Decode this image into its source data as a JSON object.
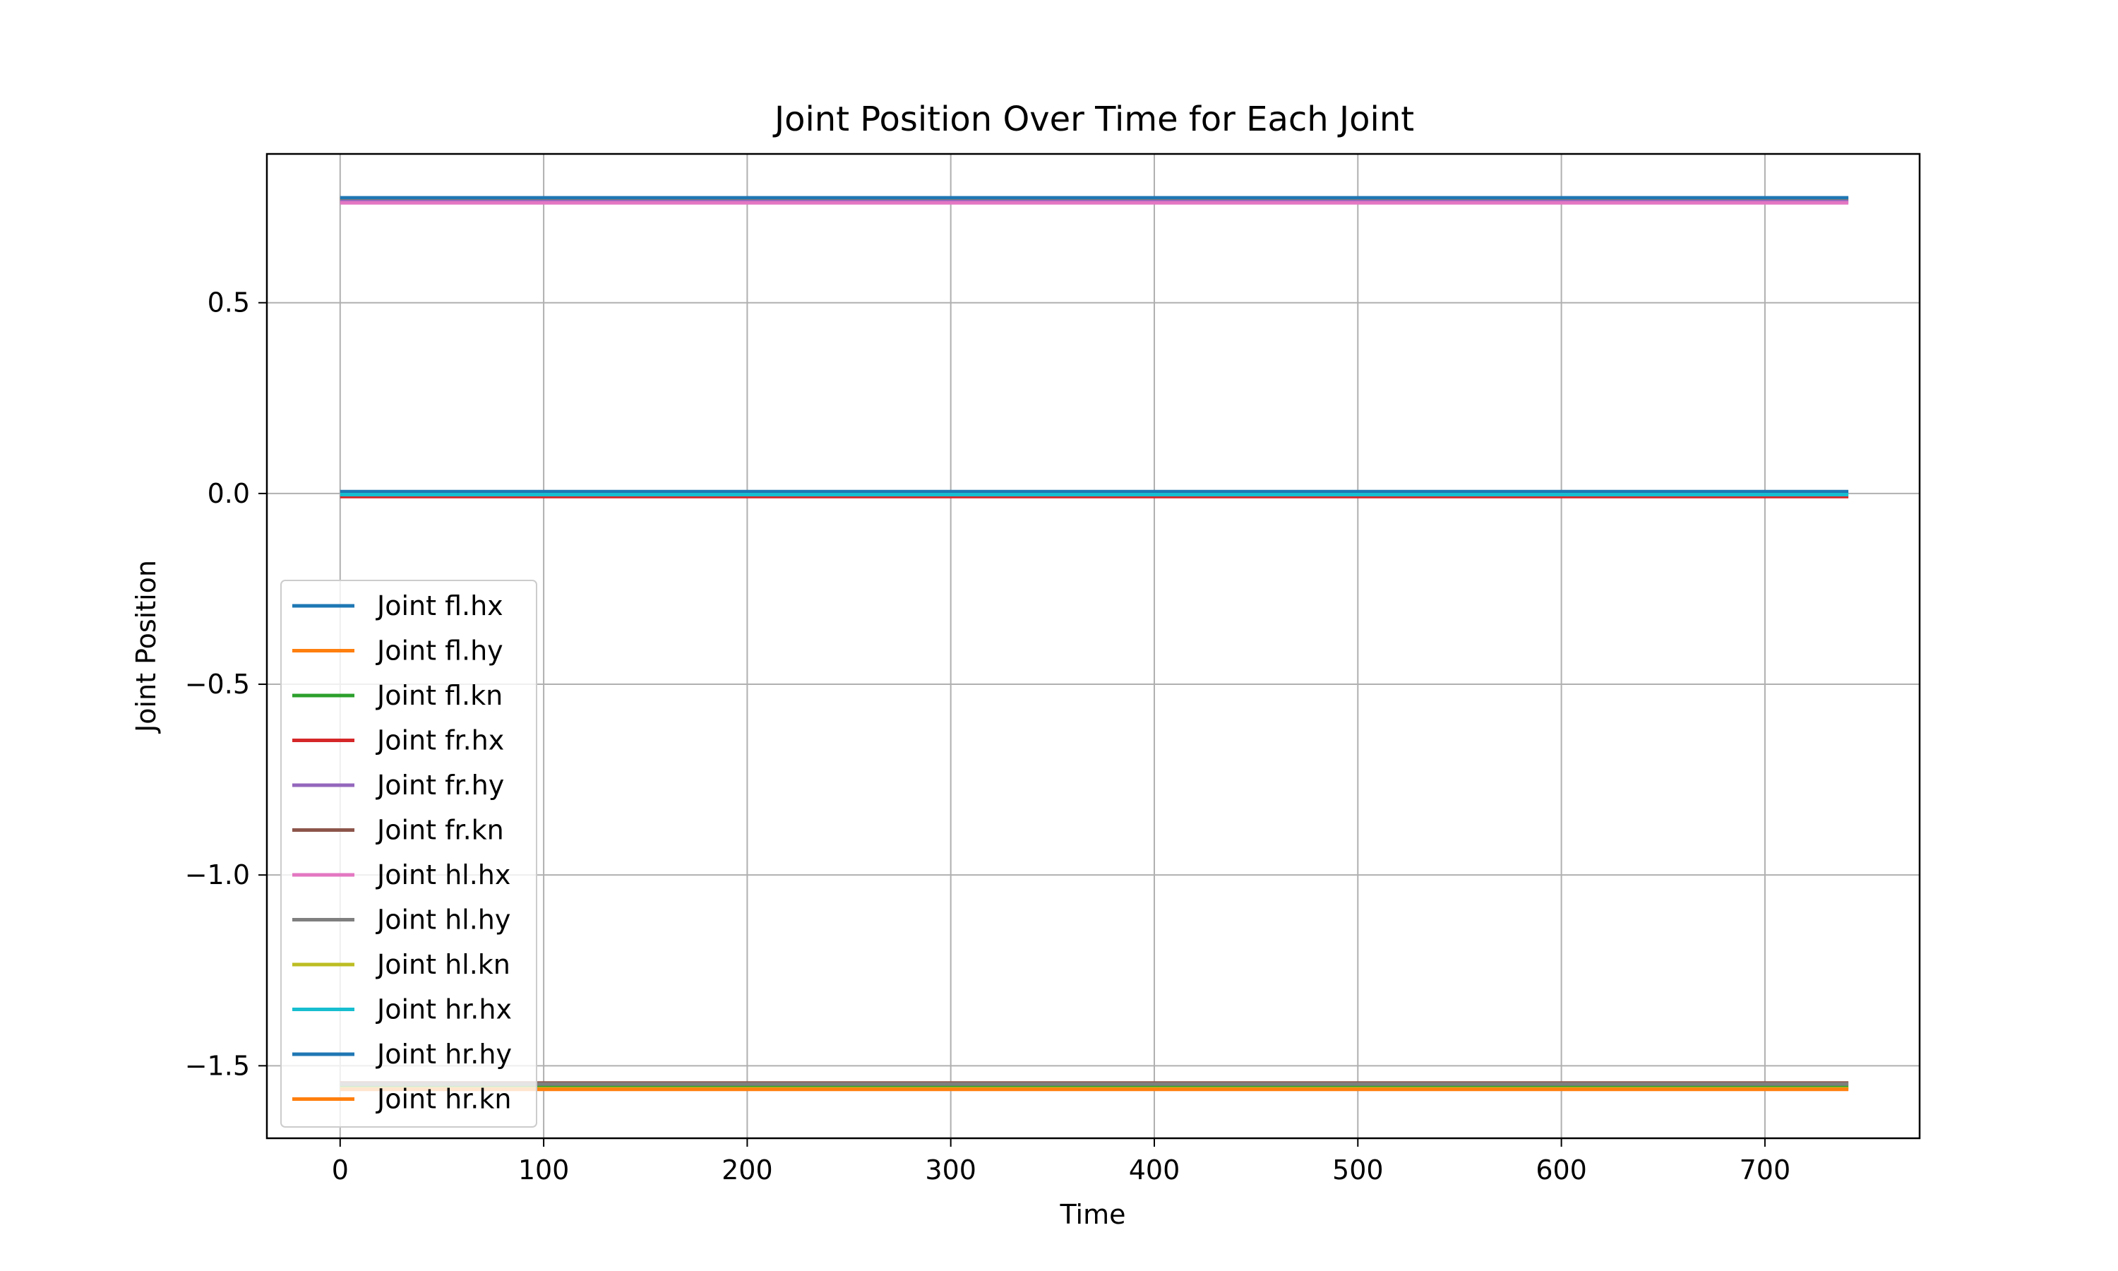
{
  "chart_data": {
    "type": "line",
    "title": "Joint Position Over Time for Each Joint",
    "xlabel": "Time",
    "ylabel": "Joint Position",
    "xlim": [
      -36,
      776
    ],
    "ylim": [
      -1.69,
      0.89
    ],
    "xticks": [
      0,
      100,
      200,
      300,
      400,
      500,
      600,
      700
    ],
    "yticks": [
      0.5,
      0.0,
      -0.5,
      -1.0,
      -1.5
    ],
    "ytick_labels": [
      "0.5",
      "0.0",
      "−0.5",
      "−1.0",
      "−1.5"
    ],
    "grid": true,
    "legend_position": "lower-left",
    "x": [
      0,
      741
    ],
    "series": [
      {
        "name": "Joint fl.hx",
        "color": "#1f77b4",
        "values": [
          0.005,
          0.005
        ]
      },
      {
        "name": "Joint fl.hy",
        "color": "#ff7f0e",
        "values": [
          0.772,
          0.772
        ]
      },
      {
        "name": "Joint fl.kn",
        "color": "#2ca02c",
        "values": [
          -1.555,
          -1.555
        ]
      },
      {
        "name": "Joint fr.hx",
        "color": "#d62728",
        "values": [
          -0.008,
          -0.008
        ]
      },
      {
        "name": "Joint fr.hy",
        "color": "#9467bd",
        "values": [
          0.765,
          0.765
        ]
      },
      {
        "name": "Joint fr.kn",
        "color": "#8c564b",
        "values": [
          -1.545,
          -1.545
        ]
      },
      {
        "name": "Joint hl.hx",
        "color": "#e377c2",
        "values": [
          0.762,
          0.762
        ]
      },
      {
        "name": "Joint hl.hy",
        "color": "#7f7f7f",
        "values": [
          -1.548,
          -1.548
        ]
      },
      {
        "name": "Joint hl.kn",
        "color": "#bcbd22",
        "values": [
          -1.56,
          -1.56
        ]
      },
      {
        "name": "Joint hr.hx",
        "color": "#17becf",
        "values": [
          -0.003,
          -0.003
        ]
      },
      {
        "name": "Joint hr.hy",
        "color": "#1f77b4",
        "values": [
          0.775,
          0.775
        ]
      },
      {
        "name": "Joint hr.kn",
        "color": "#ff7f0e",
        "values": [
          -1.562,
          -1.562
        ]
      }
    ]
  }
}
